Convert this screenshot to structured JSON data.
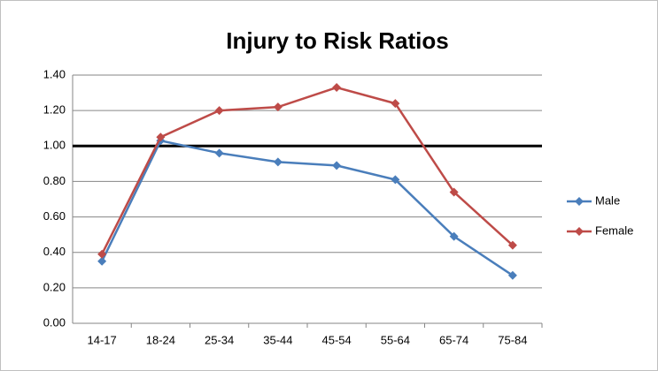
{
  "chart_data": {
    "type": "line",
    "title": "Injury to Risk Ratios",
    "categories": [
      "14-17",
      "18-24",
      "25-34",
      "35-44",
      "45-54",
      "55-64",
      "65-74",
      "75-84"
    ],
    "series": [
      {
        "name": "Male",
        "color": "#4a7ebb",
        "values": [
          0.35,
          1.03,
          0.96,
          0.91,
          0.89,
          0.81,
          0.49,
          0.27
        ]
      },
      {
        "name": "Female",
        "color": "#be4b48",
        "values": [
          0.39,
          1.05,
          1.2,
          1.22,
          1.33,
          1.24,
          0.74,
          0.44
        ]
      }
    ],
    "ylim": [
      0,
      1.4
    ],
    "yticks": [
      {
        "value": 0,
        "label": "0.00"
      },
      {
        "value": 0.2,
        "label": "0.20"
      },
      {
        "value": 0.4,
        "label": "0.40"
      },
      {
        "value": 0.6,
        "label": "0.60"
      },
      {
        "value": 0.8,
        "label": "0.80"
      },
      {
        "value": 1.0,
        "label": "1.00"
      },
      {
        "value": 1.2,
        "label": "1.20"
      },
      {
        "value": 1.4,
        "label": "1.40"
      }
    ],
    "reference_line": 1.0,
    "grid": true,
    "legend": "right"
  }
}
